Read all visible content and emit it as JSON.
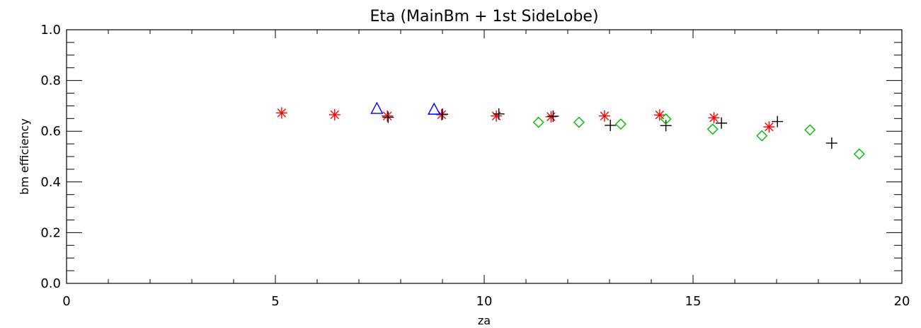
{
  "chart_data": {
    "type": "scatter",
    "title": "Eta (MainBm + 1st SideLobe)",
    "xlabel": "za",
    "ylabel": "bm efficiency",
    "xlim": [
      0,
      20
    ],
    "ylim": [
      0,
      1.0
    ],
    "x_ticks": [
      "0",
      "5",
      "10",
      "15",
      "20"
    ],
    "y_ticks": [
      "0.0",
      "0.2",
      "0.4",
      "0.6",
      "0.8",
      "1.0"
    ],
    "grid": false,
    "legend": "none",
    "series": [
      {
        "marker": "asterisk",
        "color": "#ff0000",
        "points": [
          {
            "x": 5.15,
            "y": 0.672
          },
          {
            "x": 6.42,
            "y": 0.665
          },
          {
            "x": 7.68,
            "y": 0.66
          },
          {
            "x": 8.98,
            "y": 0.665
          },
          {
            "x": 10.29,
            "y": 0.66
          },
          {
            "x": 11.6,
            "y": 0.657
          },
          {
            "x": 12.88,
            "y": 0.66
          },
          {
            "x": 14.2,
            "y": 0.664
          },
          {
            "x": 15.5,
            "y": 0.653
          },
          {
            "x": 16.82,
            "y": 0.617
          }
        ]
      },
      {
        "marker": "plus",
        "color": "#000000",
        "points": [
          {
            "x": 7.7,
            "y": 0.655
          },
          {
            "x": 9.0,
            "y": 0.667
          },
          {
            "x": 10.35,
            "y": 0.668
          },
          {
            "x": 11.65,
            "y": 0.659
          },
          {
            "x": 13.02,
            "y": 0.623
          },
          {
            "x": 14.35,
            "y": 0.622
          },
          {
            "x": 15.68,
            "y": 0.632
          },
          {
            "x": 17.02,
            "y": 0.638
          },
          {
            "x": 18.32,
            "y": 0.553
          }
        ]
      },
      {
        "marker": "diamond",
        "color": "#00bb00",
        "points": [
          {
            "x": 11.3,
            "y": 0.635
          },
          {
            "x": 12.27,
            "y": 0.635
          },
          {
            "x": 13.27,
            "y": 0.628
          },
          {
            "x": 14.35,
            "y": 0.648
          },
          {
            "x": 15.47,
            "y": 0.608
          },
          {
            "x": 16.65,
            "y": 0.582
          },
          {
            "x": 17.8,
            "y": 0.605
          },
          {
            "x": 18.98,
            "y": 0.51
          }
        ]
      },
      {
        "marker": "triangle",
        "color": "#0000ff",
        "points": [
          {
            "x": 7.43,
            "y": 0.687
          },
          {
            "x": 8.8,
            "y": 0.684
          }
        ]
      }
    ]
  }
}
